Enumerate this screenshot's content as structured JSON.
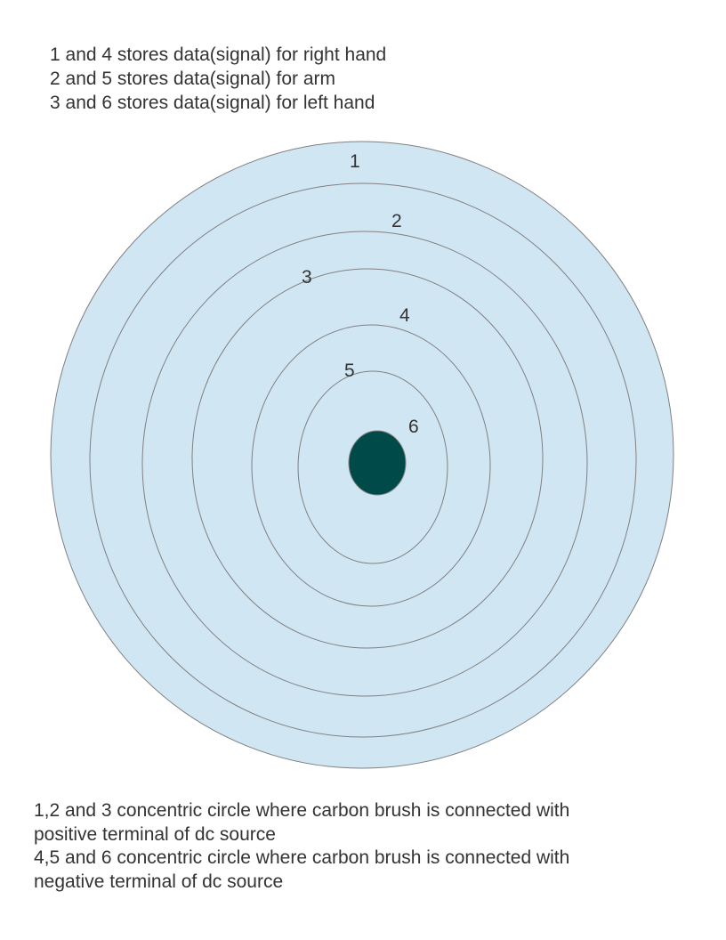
{
  "top_notes": [
    "1 and 4 stores data(signal) for right hand",
    "2 and 5 stores data(signal) for arm",
    "3 and 6 stores data(signal) for left hand"
  ],
  "rings": [
    {
      "label": "1"
    },
    {
      "label": "2"
    },
    {
      "label": "3"
    },
    {
      "label": "4"
    },
    {
      "label": "5"
    },
    {
      "label": "6"
    }
  ],
  "bottom_notes": [
    "1,2 and 3 concentric circle where carbon brush is connected with",
    "positive terminal of dc source",
    "4,5 and 6 concentric circle where carbon brush is connected with",
    "negative terminal of dc source"
  ],
  "colors": {
    "disc_fill": "#d1e6f3",
    "ring_stroke": "#808080",
    "center_fill": "#004a4a",
    "text": "#333333"
  }
}
